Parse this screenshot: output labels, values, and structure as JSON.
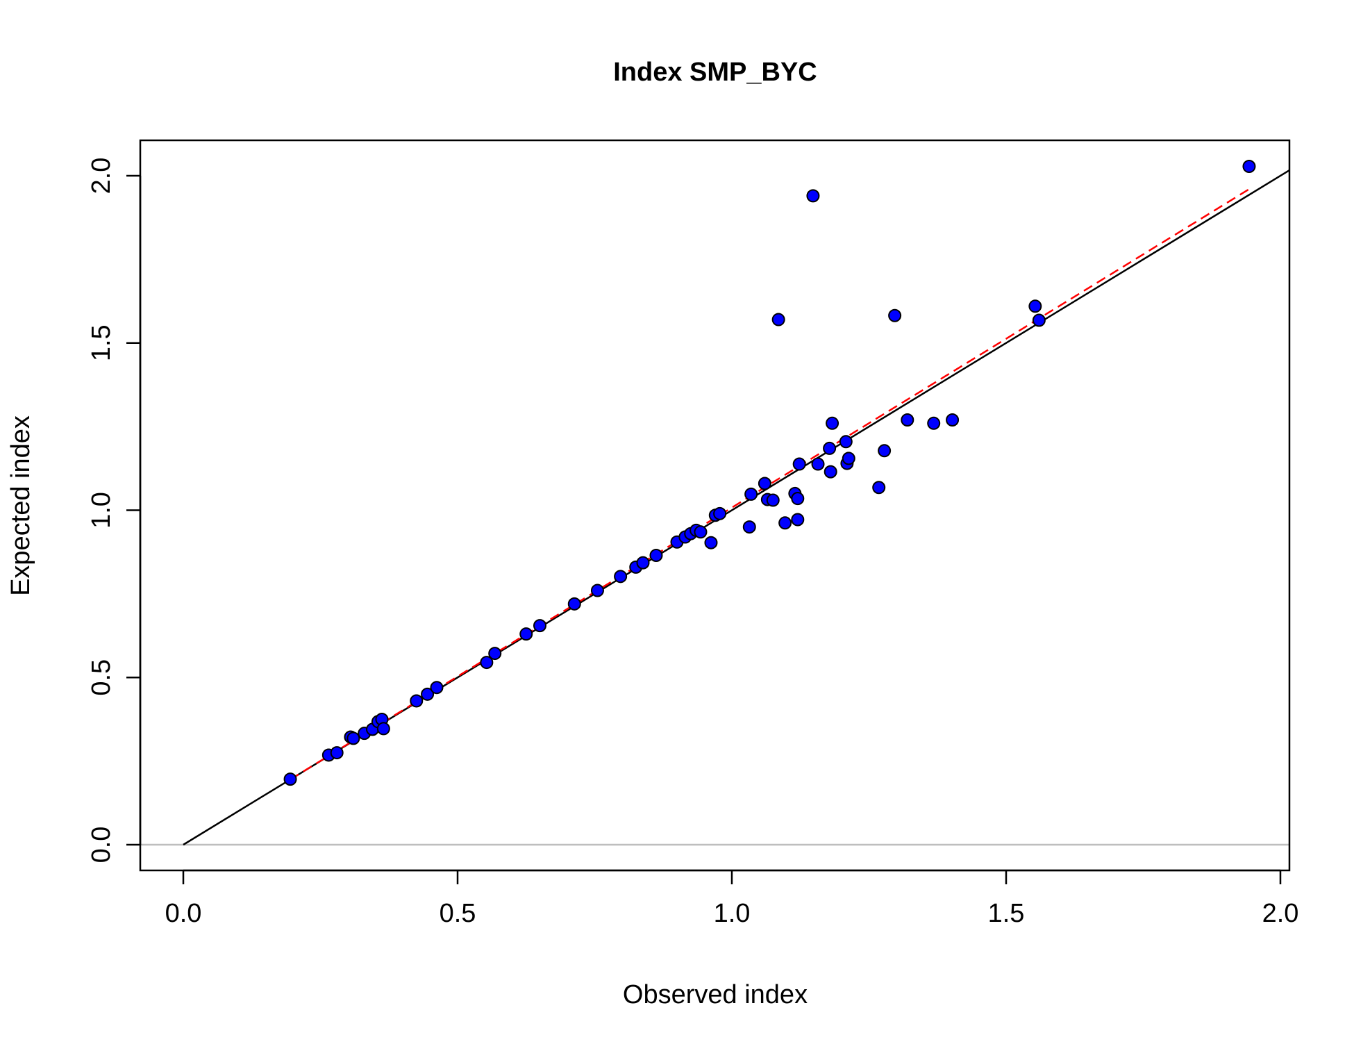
{
  "chart_data": {
    "type": "scatter",
    "title": "Index SMP_BYC",
    "xlabel": "Observed index",
    "ylabel": "Expected index",
    "xlim": [
      -0.08,
      2.02
    ],
    "ylim": [
      -0.08,
      2.11
    ],
    "x_ticks": [
      "0.0",
      "0.5",
      "1.0",
      "1.5",
      "2.0"
    ],
    "y_ticks": [
      "0.0",
      "0.5",
      "1.0",
      "1.5",
      "2.0"
    ],
    "x_tick_values": [
      0,
      0.5,
      1.0,
      1.5,
      2.0
    ],
    "y_tick_values": [
      0,
      0.5,
      1.0,
      1.5,
      2.0
    ],
    "points": [
      [
        0.195,
        0.196
      ],
      [
        0.265,
        0.268
      ],
      [
        0.28,
        0.275
      ],
      [
        0.305,
        0.322
      ],
      [
        0.31,
        0.318
      ],
      [
        0.33,
        0.333
      ],
      [
        0.345,
        0.345
      ],
      [
        0.355,
        0.368
      ],
      [
        0.362,
        0.375
      ],
      [
        0.365,
        0.347
      ],
      [
        0.425,
        0.43
      ],
      [
        0.445,
        0.45
      ],
      [
        0.462,
        0.47
      ],
      [
        0.553,
        0.545
      ],
      [
        0.568,
        0.572
      ],
      [
        0.625,
        0.63
      ],
      [
        0.65,
        0.655
      ],
      [
        0.713,
        0.72
      ],
      [
        0.755,
        0.76
      ],
      [
        0.797,
        0.802
      ],
      [
        0.825,
        0.83
      ],
      [
        0.838,
        0.843
      ],
      [
        0.862,
        0.865
      ],
      [
        0.9,
        0.905
      ],
      [
        0.915,
        0.92
      ],
      [
        0.925,
        0.93
      ],
      [
        0.935,
        0.94
      ],
      [
        0.943,
        0.935
      ],
      [
        0.962,
        0.903
      ],
      [
        0.97,
        0.985
      ],
      [
        0.978,
        0.99
      ],
      [
        1.032,
        0.95
      ],
      [
        1.035,
        1.048
      ],
      [
        1.06,
        1.08
      ],
      [
        1.065,
        1.032
      ],
      [
        1.075,
        1.03
      ],
      [
        1.085,
        1.57
      ],
      [
        1.097,
        0.962
      ],
      [
        1.115,
        1.05
      ],
      [
        1.12,
        1.035
      ],
      [
        1.12,
        0.972
      ],
      [
        1.123,
        1.138
      ],
      [
        1.148,
        1.94
      ],
      [
        1.157,
        1.138
      ],
      [
        1.178,
        1.185
      ],
      [
        1.18,
        1.115
      ],
      [
        1.183,
        1.26
      ],
      [
        1.208,
        1.205
      ],
      [
        1.21,
        1.14
      ],
      [
        1.213,
        1.155
      ],
      [
        1.268,
        1.068
      ],
      [
        1.278,
        1.178
      ],
      [
        1.297,
        1.582
      ],
      [
        1.32,
        1.27
      ],
      [
        1.368,
        1.26
      ],
      [
        1.402,
        1.27
      ],
      [
        1.553,
        1.61
      ],
      [
        1.56,
        1.568
      ],
      [
        1.943,
        2.028
      ]
    ],
    "reference_line": {
      "slope": 1,
      "intercept": 0,
      "x_start": 0,
      "color": "#000000"
    },
    "fit_line": {
      "slope": 1.0,
      "intercept": 0,
      "x_start": 0.195,
      "x_end": 1.943,
      "end_y": 1.96,
      "color": "#ff0000",
      "style": "dashed"
    },
    "hline": {
      "y": 0,
      "color": "#bebebe"
    },
    "point_fill": "#0000ff",
    "point_stroke": "#000000"
  }
}
